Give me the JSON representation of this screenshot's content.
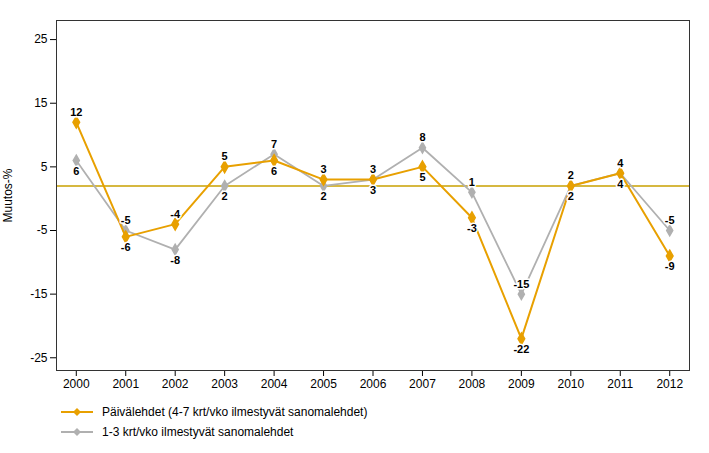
{
  "chart_data": {
    "type": "line",
    "x": [
      2000,
      2001,
      2002,
      2003,
      2004,
      2005,
      2006,
      2007,
      2008,
      2009,
      2010,
      2011,
      2012
    ],
    "xlim": [
      1999.6,
      2012.4
    ],
    "xticks": [
      2000,
      2001,
      2002,
      2003,
      2004,
      2005,
      2006,
      2007,
      2008,
      2009,
      2010,
      2011,
      2012
    ],
    "ylim": [
      -27,
      28
    ],
    "yticks": [
      -25,
      -15,
      -5,
      5,
      15,
      25
    ],
    "y_label": "Muutos-%",
    "grid": false,
    "legend": "bottom",
    "data_labels": true,
    "reference_line": {
      "y": 2,
      "color": "#C8A000"
    },
    "series": [
      {
        "name": "Päivälehdet (4-7 krt/vko ilmestyvät sanomalehdet)",
        "color": "#E8A000",
        "marker": "diamond",
        "line_style": "solid",
        "values": [
          12,
          -6,
          -4,
          5,
          6,
          3,
          3,
          5,
          -3,
          -22,
          2,
          4,
          -9
        ]
      },
      {
        "name": "1-3 krt/vko ilmestyvät sanomalehdet",
        "color": "#B0B0B0",
        "marker": "diamond",
        "line_style": "solid",
        "values": [
          6,
          -5,
          -8,
          2,
          7,
          2,
          3,
          8,
          1,
          -15,
          2,
          4,
          -5
        ]
      }
    ]
  }
}
